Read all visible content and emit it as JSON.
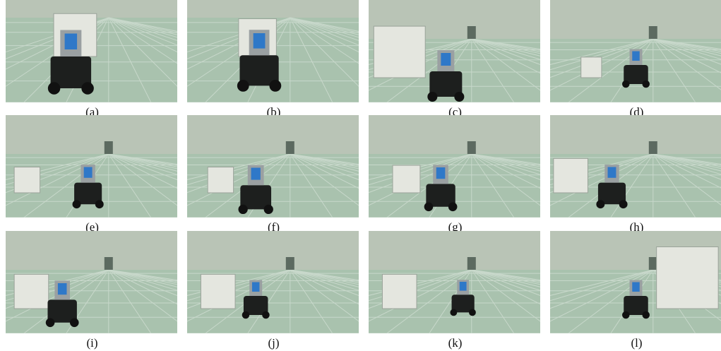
{
  "panels": [
    {
      "caption": "(a)"
    },
    {
      "caption": "(b)"
    },
    {
      "caption": "(c)"
    },
    {
      "caption": "(d)"
    },
    {
      "caption": "(e)"
    },
    {
      "caption": "(f)"
    },
    {
      "caption": "(g)"
    },
    {
      "caption": "(h)"
    },
    {
      "caption": "(i)"
    },
    {
      "caption": "(j)"
    },
    {
      "caption": "(k)"
    },
    {
      "caption": "(l)"
    }
  ]
}
